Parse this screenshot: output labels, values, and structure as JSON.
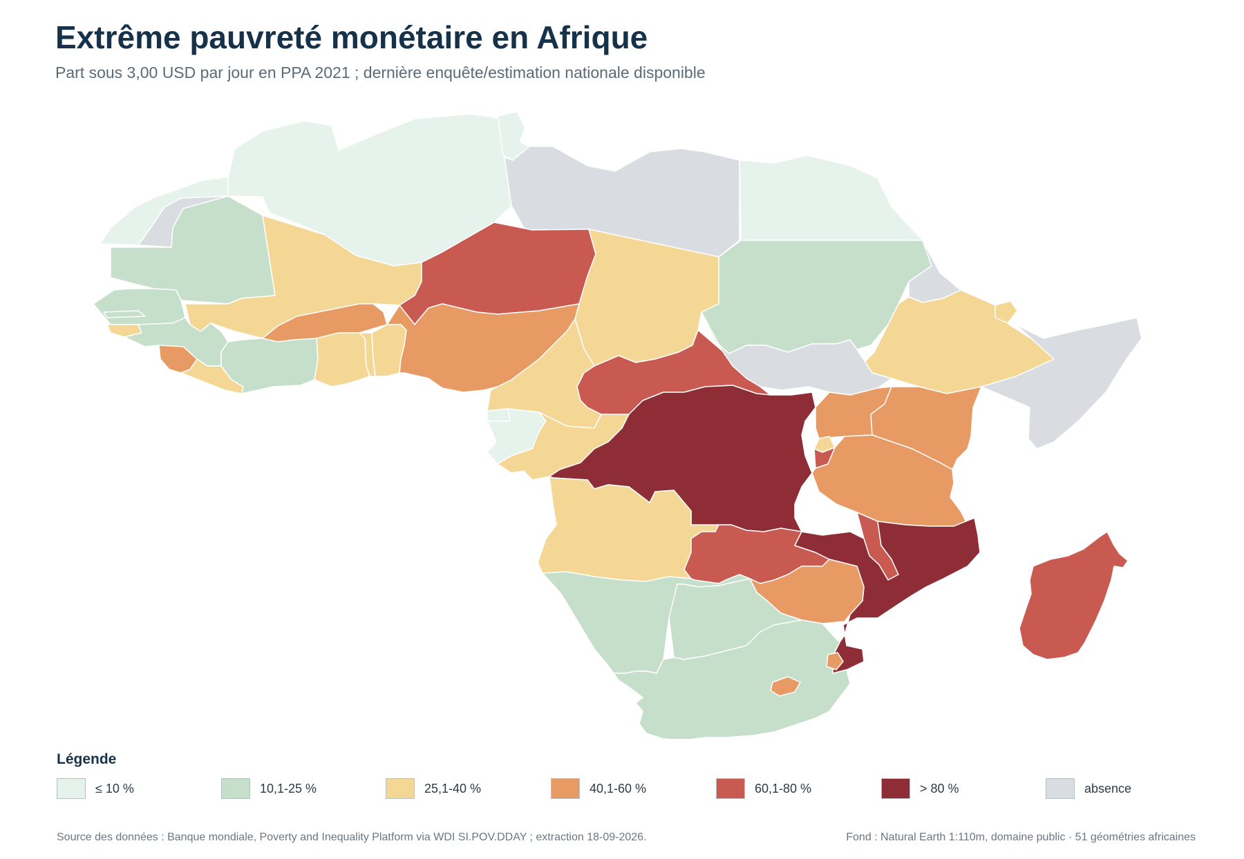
{
  "header": {
    "title": "Extrême pauvreté monétaire en Afrique",
    "subtitle": "Part sous 3,00 USD par jour en PPA 2021 ; dernière enquête/estimation nationale disponible"
  },
  "legend": {
    "title": "Légende",
    "items": [
      {
        "label": "≤ 10 %",
        "color": "#e6f3ec"
      },
      {
        "label": "10,1-25 %",
        "color": "#c6dfca"
      },
      {
        "label": "25,1-40 %",
        "color": "#f4d795"
      },
      {
        "label": "40,1-60 %",
        "color": "#e89a64"
      },
      {
        "label": "60,1-80 %",
        "color": "#c85a52"
      },
      {
        "label": "> 80 %",
        "color": "#8e2d36"
      },
      {
        "label": "absence",
        "color": "#d9dde1"
      }
    ]
  },
  "footer": {
    "source": "Source des données : Banque mondiale, Poverty and Inequality Platform via WDI SI.POV.DDAY ; extraction 18-09-2026.",
    "basemap": "Fond : Natural Earth 1:110m, domaine public · 51 géométries africaines"
  },
  "map_data": {
    "regions": [
      {
        "name": "Maroc",
        "class": "≤ 10 %"
      },
      {
        "name": "Algérie",
        "class": "≤ 10 %"
      },
      {
        "name": "Tunisie",
        "class": "≤ 10 %"
      },
      {
        "name": "Libye",
        "class": "absence"
      },
      {
        "name": "Égypte",
        "class": "≤ 10 %"
      },
      {
        "name": "Sahara occidental",
        "class": "absence"
      },
      {
        "name": "Mauritanie",
        "class": "10,1-25 %"
      },
      {
        "name": "Mali",
        "class": "25,1-40 %"
      },
      {
        "name": "Niger",
        "class": "60,1-80 %"
      },
      {
        "name": "Tchad",
        "class": "25,1-40 %"
      },
      {
        "name": "Soudan",
        "class": "10,1-25 %"
      },
      {
        "name": "Érythrée",
        "class": "absence"
      },
      {
        "name": "Éthiopie",
        "class": "25,1-40 %"
      },
      {
        "name": "Djibouti",
        "class": "25,1-40 %"
      },
      {
        "name": "Somalie",
        "class": "absence"
      },
      {
        "name": "Soudan du Sud",
        "class": "absence"
      },
      {
        "name": "Sénégal",
        "class": "10,1-25 %"
      },
      {
        "name": "Gambie",
        "class": "10,1-25 %"
      },
      {
        "name": "Guinée-Bissau",
        "class": "25,1-40 %"
      },
      {
        "name": "Guinée",
        "class": "10,1-25 %"
      },
      {
        "name": "Sierra Leone",
        "class": "40,1-60 %"
      },
      {
        "name": "Liberia",
        "class": "25,1-40 %"
      },
      {
        "name": "Côte d'Ivoire",
        "class": "10,1-25 %"
      },
      {
        "name": "Burkina Faso",
        "class": "40,1-60 %"
      },
      {
        "name": "Ghana",
        "class": "25,1-40 %"
      },
      {
        "name": "Togo",
        "class": "25,1-40 %"
      },
      {
        "name": "Bénin",
        "class": "25,1-40 %"
      },
      {
        "name": "Nigeria",
        "class": "40,1-60 %"
      },
      {
        "name": "Cameroun",
        "class": "25,1-40 %"
      },
      {
        "name": "République centrafricaine",
        "class": "60,1-80 %"
      },
      {
        "name": "Guinée équatoriale",
        "class": "≤ 10 %"
      },
      {
        "name": "Gabon",
        "class": "≤ 10 %"
      },
      {
        "name": "Congo",
        "class": "25,1-40 %"
      },
      {
        "name": "RD Congo",
        "class": "> 80 %"
      },
      {
        "name": "Ouganda",
        "class": "40,1-60 %"
      },
      {
        "name": "Kenya",
        "class": "40,1-60 %"
      },
      {
        "name": "Rwanda",
        "class": "25,1-40 %"
      },
      {
        "name": "Burundi",
        "class": "60,1-80 %"
      },
      {
        "name": "Tanzanie",
        "class": "40,1-60 %"
      },
      {
        "name": "Angola",
        "class": "25,1-40 %"
      },
      {
        "name": "Zambie",
        "class": "60,1-80 %"
      },
      {
        "name": "Malawi",
        "class": "60,1-80 %"
      },
      {
        "name": "Mozambique",
        "class": "> 80 %"
      },
      {
        "name": "Zimbabwe",
        "class": "40,1-60 %"
      },
      {
        "name": "Namibie",
        "class": "10,1-25 %"
      },
      {
        "name": "Botswana",
        "class": "10,1-25 %"
      },
      {
        "name": "Afrique du Sud",
        "class": "10,1-25 %"
      },
      {
        "name": "Eswatini",
        "class": "40,1-60 %"
      },
      {
        "name": "Lesotho",
        "class": "40,1-60 %"
      },
      {
        "name": "Madagascar",
        "class": "60,1-80 %"
      }
    ]
  }
}
